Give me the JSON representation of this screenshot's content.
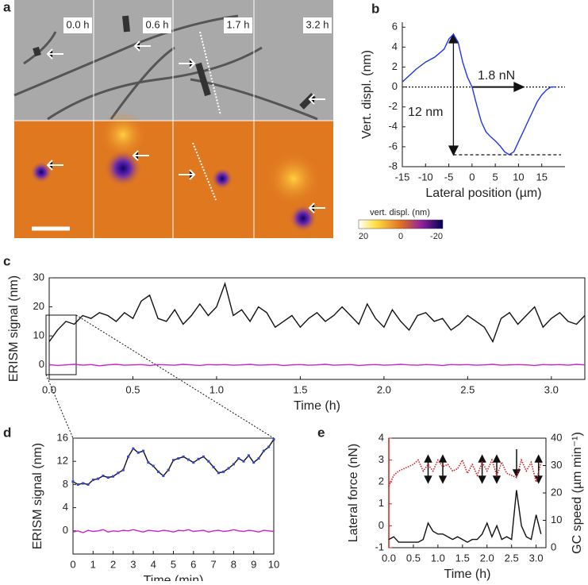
{
  "panel_labels": [
    "a",
    "b",
    "c",
    "d",
    "e"
  ],
  "panel_a": {
    "times": [
      "0.0 h",
      "0.6 h",
      "1.7 h",
      "3.2 h"
    ],
    "colorbar": {
      "title": "vert. displ. (nm)",
      "ticks": [
        20,
        0,
        -20
      ]
    }
  },
  "chart_data": [
    {
      "type": "line",
      "xlabel": "Lateral position (µm)",
      "ylabel": "Vert. displ. (nm)",
      "annotations": [
        "1.8 nN",
        "12 nm"
      ],
      "x": [
        -15,
        -12,
        -10,
        -8,
        -6,
        -5,
        -4,
        -3,
        -2,
        -1,
        0,
        1,
        2,
        3,
        4,
        5,
        6,
        7,
        8,
        9,
        10,
        11,
        12,
        13,
        14,
        15,
        16,
        17,
        18
      ],
      "series": [
        {
          "color": "#2233ee",
          "values": [
            0.5,
            1.8,
            2.5,
            3.0,
            3.8,
            4.8,
            5.3,
            4.5,
            2.5,
            1.0,
            0,
            -1.8,
            -3.5,
            -4.5,
            -5.0,
            -5.4,
            -5.9,
            -6.5,
            -6.8,
            -6.5,
            -5.5,
            -4.5,
            -3.5,
            -2.5,
            -1.5,
            -0.8,
            -0.3,
            0,
            0
          ]
        }
      ],
      "xlim": [
        -15,
        20
      ],
      "ylim": [
        -8,
        6.5
      ],
      "xticks": [
        -15,
        -10,
        -5,
        0,
        5,
        10,
        15
      ],
      "yticks": [
        -8,
        -6,
        -4,
        -2,
        0,
        2,
        4,
        6
      ]
    },
    {
      "type": "line",
      "xlabel": "Time (h)",
      "ylabel": "ERISM signal (nm)",
      "x": [
        0,
        0.05,
        0.1,
        0.15,
        0.2,
        0.25,
        0.3,
        0.35,
        0.4,
        0.45,
        0.5,
        0.55,
        0.6,
        0.65,
        0.7,
        0.75,
        0.8,
        0.85,
        0.9,
        0.95,
        1.0,
        1.05,
        1.1,
        1.15,
        1.2,
        1.25,
        1.3,
        1.35,
        1.4,
        1.45,
        1.5,
        1.55,
        1.6,
        1.65,
        1.7,
        1.75,
        1.8,
        1.85,
        1.9,
        1.95,
        2.0,
        2.05,
        2.1,
        2.15,
        2.2,
        2.25,
        2.3,
        2.35,
        2.4,
        2.45,
        2.5,
        2.55,
        2.6,
        2.65,
        2.7,
        2.75,
        2.8,
        2.85,
        2.9,
        2.95,
        3.0,
        3.05,
        3.1,
        3.15,
        3.2
      ],
      "series": [
        {
          "color": "#111111",
          "values": [
            8,
            12,
            15,
            14,
            17,
            16,
            18,
            17,
            15,
            18,
            16,
            22,
            24,
            16,
            15,
            19,
            14,
            17,
            21,
            17,
            20,
            28,
            17,
            19,
            15,
            20,
            18,
            13,
            15,
            17,
            13,
            16,
            18,
            15,
            17,
            20,
            17,
            14,
            21,
            16,
            13,
            19,
            15,
            12,
            17,
            18,
            15,
            16,
            12,
            14,
            17,
            15,
            13,
            8,
            16,
            18,
            14,
            17,
            20,
            13,
            16,
            18,
            15,
            14,
            17
          ]
        },
        {
          "color": "#cc22cc",
          "values": [
            0.1,
            -0.2,
            0,
            0.2,
            -0.1,
            0.1,
            -0.3,
            0,
            0.2,
            -0.1,
            0,
            0.1,
            -0.2,
            0.1,
            0,
            -0.1,
            0.2,
            0,
            -0.2,
            0.1,
            0,
            0.1,
            -0.1,
            0,
            0.2,
            -0.1,
            0,
            0.1,
            -0.2,
            0,
            0.1,
            -0.1,
            0,
            0.2,
            -0.1,
            0,
            0.1,
            -0.2,
            0,
            0.1,
            -0.1,
            0,
            0.2,
            0,
            -0.1,
            0.1,
            0,
            -0.2,
            0.1,
            0,
            0.1,
            -0.1,
            0,
            0.2,
            -0.1,
            0,
            0.1,
            0,
            -0.2,
            0.1,
            0,
            0.1,
            -0.1,
            0.2,
            0
          ]
        }
      ],
      "xlim": [
        0,
        3.2
      ],
      "ylim": [
        -5,
        30
      ],
      "xticks": [
        {
          "value": 0,
          "label": "0.0"
        },
        0.5,
        {
          "value": 1,
          "label": "1.0"
        },
        1.5,
        {
          "value": 2,
          "label": "2.0"
        },
        2.5,
        {
          "value": 3,
          "label": "3.0"
        }
      ],
      "yticks": [
        0,
        10,
        20,
        30
      ]
    },
    {
      "type": "line",
      "xlabel": "Time (min)",
      "ylabel": "ERISM signal (nm)",
      "x": [
        0,
        0.25,
        0.5,
        0.75,
        1,
        1.25,
        1.5,
        1.75,
        2,
        2.25,
        2.5,
        2.75,
        3,
        3.25,
        3.5,
        3.75,
        4,
        4.25,
        4.5,
        4.75,
        5,
        5.25,
        5.5,
        5.75,
        6,
        6.25,
        6.5,
        6.75,
        7,
        7.25,
        7.5,
        7.75,
        8,
        8.25,
        8.5,
        8.75,
        9,
        9.25,
        9.5,
        9.75,
        10
      ],
      "series": [
        {
          "color": "#111111",
          "marker_color": "#3344cc",
          "markers": true,
          "values": [
            8.5,
            8,
            8.2,
            8,
            8.8,
            9,
            9.5,
            9.2,
            9.4,
            10,
            10.5,
            12.8,
            14.2,
            13.5,
            13.8,
            11.8,
            11.2,
            10.2,
            9.5,
            10.5,
            12.2,
            12.5,
            12.8,
            12.3,
            11.8,
            12.4,
            12.8,
            12,
            11,
            10,
            10.2,
            10.8,
            11.5,
            12.5,
            12,
            13,
            11.8,
            12.5,
            13.8,
            14.5,
            15.8
          ]
        },
        {
          "color": "#cc22cc",
          "values": [
            -0.2,
            0,
            -0.3,
            0.1,
            -0.1,
            0,
            0.2,
            -0.2,
            0,
            -0.1,
            0.1,
            0,
            0.2,
            0,
            -0.2,
            0.1,
            0,
            -0.1,
            0.1,
            0,
            -0.2,
            0.1,
            0,
            0.2,
            -0.1,
            0,
            0.1,
            -0.2,
            0,
            0.1,
            -0.1,
            0,
            0.2,
            0,
            -0.1,
            0.1,
            0,
            -0.2,
            0.1,
            0,
            -0.1
          ]
        }
      ],
      "xlim": [
        0,
        10
      ],
      "ylim": [
        -4,
        16
      ],
      "xticks": [
        0,
        1,
        2,
        3,
        4,
        5,
        6,
        7,
        8,
        9,
        10
      ],
      "yticks": [
        0,
        4,
        8,
        12,
        16
      ]
    },
    {
      "type": "line",
      "xlabel": "Time (h)",
      "ylabel": "Lateral force (nN)",
      "y2label": "GC speed (µm min⁻¹)",
      "ylabel_color": "#cc2222",
      "x": [
        0,
        0.1,
        0.2,
        0.3,
        0.4,
        0.5,
        0.6,
        0.7,
        0.8,
        0.9,
        1.0,
        1.1,
        1.2,
        1.3,
        1.4,
        1.5,
        1.6,
        1.7,
        1.8,
        1.9,
        2.0,
        2.1,
        2.2,
        2.3,
        2.4,
        2.5,
        2.6,
        2.7,
        2.8,
        2.9,
        3.0,
        3.1
      ],
      "series": [
        {
          "color": "#cc2222",
          "dotted": true,
          "values": [
            1.8,
            2.3,
            2.5,
            2.6,
            2.7,
            2.8,
            3.0,
            2.5,
            2.8,
            2.5,
            3.0,
            2.7,
            2.8,
            2.5,
            2.6,
            3.0,
            2.4,
            2.8,
            2.3,
            2.9,
            2.5,
            3.0,
            2.3,
            2.9,
            2.4,
            2.3,
            2.2,
            3.0,
            2.5,
            2.9,
            2.0,
            2.9
          ]
        },
        {
          "color": "#111111",
          "axis": "y2",
          "values": [
            3,
            4,
            2,
            2,
            2,
            2,
            2,
            3,
            9,
            6,
            5,
            5,
            4,
            3,
            4,
            3,
            2,
            3,
            3,
            5,
            9,
            4,
            8,
            3,
            4,
            3,
            21,
            8,
            4,
            3,
            12,
            5
          ]
        }
      ],
      "xlim": [
        0,
        3.2
      ],
      "ylim": [
        -1,
        4
      ],
      "y2lim": [
        0,
        40
      ],
      "xticks": [
        {
          "value": 0,
          "label": "0.0"
        },
        0.5,
        {
          "value": 1,
          "label": "1.0"
        },
        1.5,
        {
          "value": 2,
          "label": "2.0"
        },
        2.5,
        {
          "value": 3,
          "label": "3.0"
        }
      ],
      "yticks": [
        -1,
        0,
        1,
        2,
        3,
        4
      ],
      "y2ticks": [
        0,
        10,
        20,
        30,
        40
      ]
    }
  ]
}
